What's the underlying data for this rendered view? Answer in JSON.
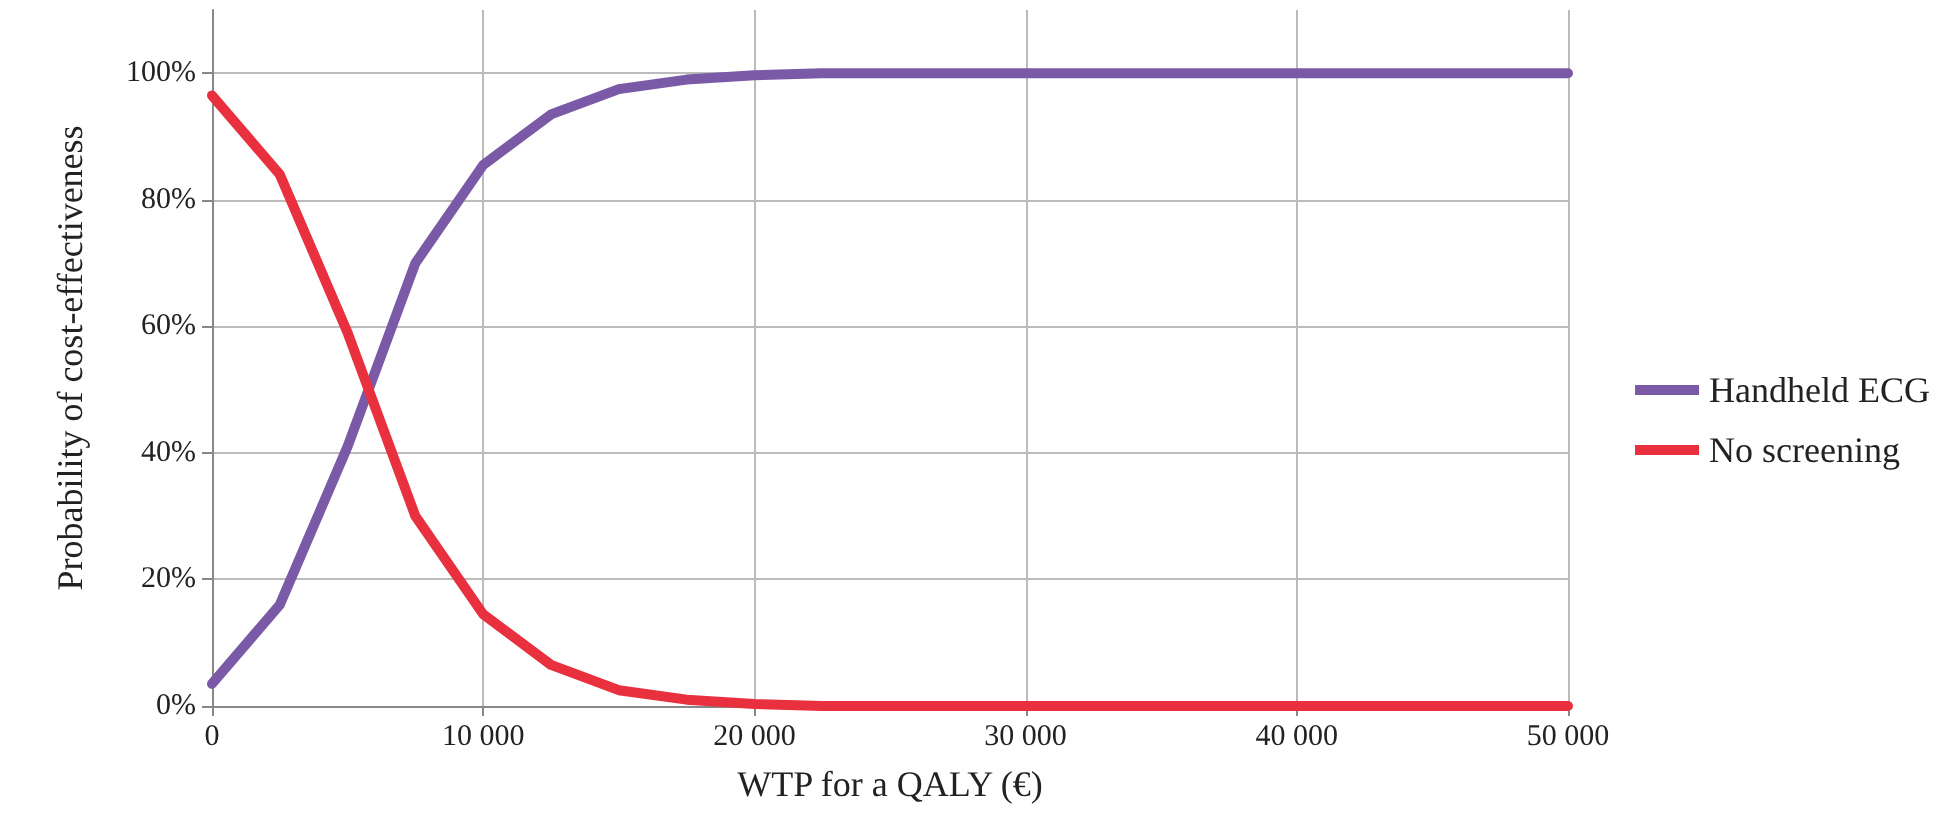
{
  "chart_data": {
    "type": "line",
    "xlabel": "WTP for a QALY (€)",
    "ylabel": "Probability of cost-effectiveness",
    "x": [
      0,
      2500,
      5000,
      7500,
      10000,
      12500,
      15000,
      17500,
      20000,
      22500,
      25000,
      27500,
      30000,
      32500,
      35000,
      37500,
      40000,
      42500,
      45000,
      47500,
      50000
    ],
    "series": [
      {
        "name": "Handheld ECG",
        "color": "#7a5aa6",
        "values": [
          3.5,
          16,
          41,
          70,
          85.5,
          93.5,
          97.5,
          99,
          99.7,
          100,
          100,
          100,
          100,
          100,
          100,
          100,
          100,
          100,
          100,
          100,
          100
        ]
      },
      {
        "name": "No screening",
        "color": "#e8303f",
        "values": [
          96.5,
          84,
          59,
          30,
          14.5,
          6.5,
          2.5,
          1,
          0.3,
          0,
          0,
          0,
          0,
          0,
          0,
          0,
          0,
          0,
          0,
          0,
          0
        ]
      }
    ],
    "xlim": [
      0,
      50000
    ],
    "xticks": [
      0,
      {
        "value": 10000,
        "label": "10 000"
      },
      {
        "value": 20000,
        "label": "20 000"
      },
      {
        "value": 30000,
        "label": "30 000"
      },
      {
        "value": 40000,
        "label": "40 000"
      },
      {
        "value": 50000,
        "label": "50 000"
      }
    ],
    "ylim": [
      0,
      110
    ],
    "yticks": [
      {
        "value": 0,
        "label": "0%"
      },
      {
        "value": 20,
        "label": "20%"
      },
      {
        "value": 40,
        "label": "40%"
      },
      {
        "value": 60,
        "label": "60%"
      },
      {
        "value": 80,
        "label": "80%"
      },
      {
        "value": 100,
        "label": "100%"
      }
    ],
    "grid": true,
    "legend": "right",
    "marker": "none",
    "line_style": "solid"
  }
}
